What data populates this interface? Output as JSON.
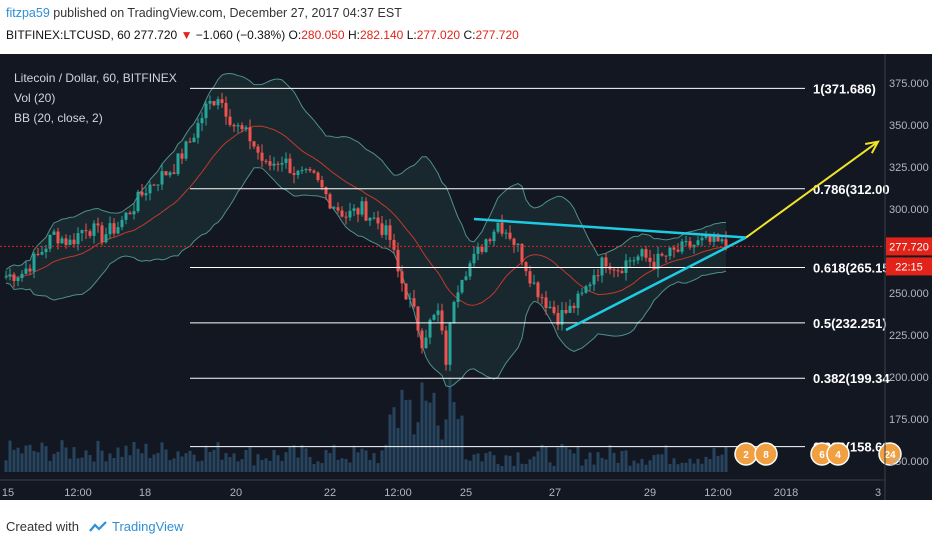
{
  "header": {
    "user": "fitzpa59",
    "published_text": " published on TradingView.com, December 27, 2017 04:37 EST",
    "symbol": "BITFINEX:LTCUSD, 60",
    "last": "277.720",
    "change_arrow": "▼",
    "change": "−1.060 (−0.38%)",
    "o_label": "O:",
    "o_val": "280.050",
    "h_label": "H:",
    "h_val": "282.140",
    "l_label": "L:",
    "l_val": "277.020",
    "c_label": "C:",
    "c_val": "277.720"
  },
  "legend": {
    "title": "Litecoin / Dollar, 60, BITFINEX",
    "vol": "Vol (20)",
    "bb": "BB (20, close, 2)"
  },
  "footer": {
    "created_with": "Created with",
    "brand": "TradingView"
  },
  "colors": {
    "background": "#131722",
    "up": "#26a69a",
    "down": "#ef5350",
    "bb": "#4f8f8a",
    "fib": "#ffffff",
    "triangle": "#1ecbe1",
    "arrow": "#f0e42a",
    "price_line": "#e2231a",
    "volume": "#27455f"
  },
  "chart_data": {
    "type": "candlestick",
    "title": "Litecoin / Dollar, 60, BITFINEX",
    "indicators": [
      "Vol (20)",
      "BB (20, close, 2)"
    ],
    "ylim": [
      140,
      385
    ],
    "y_ticks": [
      150,
      175,
      200,
      225,
      250,
      275,
      300,
      325,
      350,
      375
    ],
    "y_tick_labels": [
      "150.000",
      "175.000",
      "200.000",
      "225.000",
      "250.000",
      "275.000",
      "300.000",
      "325.000",
      "350.000",
      "375.000"
    ],
    "x_tick_labels": [
      "15",
      "12:00",
      "18",
      "20",
      "22",
      "12:00",
      "25",
      "27",
      "29",
      "12:00",
      "2018",
      "3"
    ],
    "current_price": 277.72,
    "current_price_label": "277.720",
    "countdown_label": "22:15",
    "fib_levels": [
      {
        "value": 371.686,
        "label": "1(371.686)"
      },
      {
        "value": 312.0,
        "label": "0.786(312.00"
      },
      {
        "value": 265.15,
        "label": "0.618(265.15"
      },
      {
        "value": 232.251,
        "label": "0.5(232.251)"
      },
      {
        "value": 199.34,
        "label": "0.382(199.34"
      },
      {
        "value": 158.63,
        "label": "0.236(158.63"
      }
    ],
    "price_path": [
      [
        0,
        260
      ],
      [
        4,
        262
      ],
      [
        8,
        272
      ],
      [
        12,
        285
      ],
      [
        16,
        280
      ],
      [
        20,
        290
      ],
      [
        24,
        284
      ],
      [
        28,
        290
      ],
      [
        32,
        302
      ],
      [
        35,
        312
      ],
      [
        38,
        318
      ],
      [
        42,
        325
      ],
      [
        46,
        340
      ],
      [
        50,
        360
      ],
      [
        53,
        368
      ],
      [
        57,
        350
      ],
      [
        61,
        342
      ],
      [
        65,
        325
      ],
      [
        69,
        330
      ],
      [
        73,
        320
      ],
      [
        77,
        318
      ],
      [
        81,
        305
      ],
      [
        85,
        296
      ],
      [
        89,
        300
      ],
      [
        93,
        292
      ],
      [
        96,
        282
      ],
      [
        98,
        262
      ],
      [
        100,
        250
      ],
      [
        102,
        238
      ],
      [
        104,
        222
      ],
      [
        106,
        232
      ],
      [
        108,
        238
      ],
      [
        110,
        210
      ],
      [
        112,
        248
      ],
      [
        114,
        262
      ],
      [
        117,
        270
      ],
      [
        120,
        282
      ],
      [
        123,
        292
      ],
      [
        126,
        285
      ],
      [
        129,
        272
      ],
      [
        132,
        255
      ],
      [
        135,
        245
      ],
      [
        138,
        236
      ],
      [
        141,
        240
      ],
      [
        144,
        248
      ],
      [
        147,
        262
      ],
      [
        150,
        270
      ],
      [
        153,
        265
      ],
      [
        156,
        270
      ],
      [
        159,
        272
      ],
      [
        162,
        268
      ],
      [
        165,
        272
      ],
      [
        168,
        275
      ],
      [
        171,
        278
      ],
      [
        174,
        280
      ],
      [
        177,
        280
      ],
      [
        180,
        278
      ]
    ],
    "triangle_upper": [
      [
        117,
        294
      ],
      [
        185,
        283
      ]
    ],
    "triangle_lower": [
      [
        140,
        228
      ],
      [
        185,
        283
      ]
    ],
    "projection_arrow": [
      [
        185,
        283
      ],
      [
        218,
        340
      ]
    ],
    "event_badges": [
      {
        "index": 185,
        "label": "2"
      },
      {
        "index": 190,
        "label": "8"
      },
      {
        "index": 204,
        "label": "6"
      },
      {
        "index": 208,
        "label": "4"
      },
      {
        "index": 221,
        "label": "24"
      }
    ]
  }
}
